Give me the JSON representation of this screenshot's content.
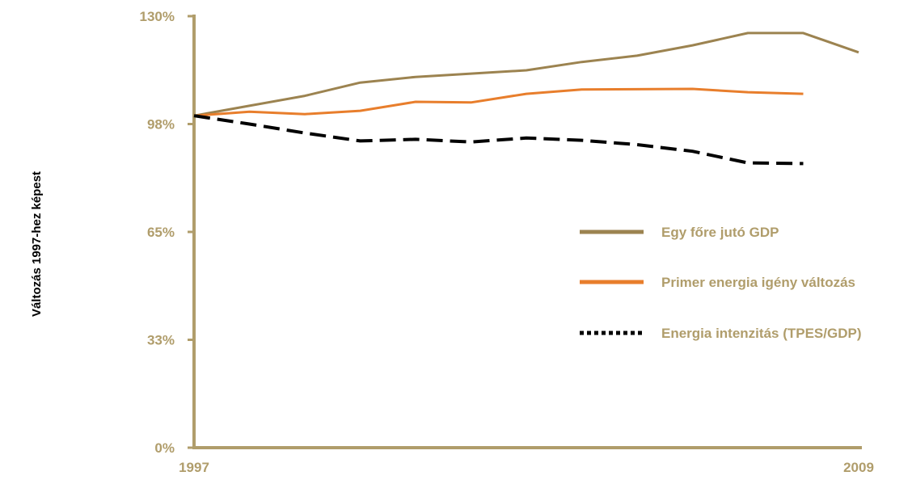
{
  "chart_data": {
    "type": "line",
    "ylabel": "Változás 1997-hez képest",
    "xlabel": "",
    "x": [
      1997,
      1998,
      1999,
      2000,
      2001,
      2002,
      2003,
      2004,
      2005,
      2006,
      2007,
      2008,
      2009
    ],
    "x_tick_labels": [
      "1997",
      "2009"
    ],
    "y_ticks": [
      0,
      32.5,
      65,
      97.5,
      130
    ],
    "y_tick_labels": [
      "0%",
      "33%",
      "65%",
      "98%",
      "130%"
    ],
    "ylim": [
      0,
      130
    ],
    "grid": false,
    "legend_position": "right",
    "series": [
      {
        "name": "Egy főre jutó GDP",
        "color": "#9c8350",
        "style": "solid",
        "values": [
          100,
          103,
          106,
          110,
          111.7,
          112.7,
          113.7,
          116.2,
          118.1,
          121.2,
          124.9,
          124.9,
          119.1
        ]
      },
      {
        "name": "Primer energia igény változás",
        "color": "#e87e2c",
        "style": "solid",
        "values": [
          100,
          101.2,
          100.5,
          101.5,
          104.2,
          104.0,
          106.6,
          107.9,
          108.0,
          108.1,
          107.1,
          106.6,
          null
        ]
      },
      {
        "name": "Energia intenzitás (TPES/GDP)",
        "color": "#000000",
        "style": "dashed",
        "values": [
          100,
          97.5,
          94.8,
          92.4,
          92.9,
          92.1,
          93.3,
          92.6,
          91.3,
          89.3,
          85.8,
          85.6,
          null
        ]
      }
    ],
    "axis_color": "#b09d6b"
  }
}
